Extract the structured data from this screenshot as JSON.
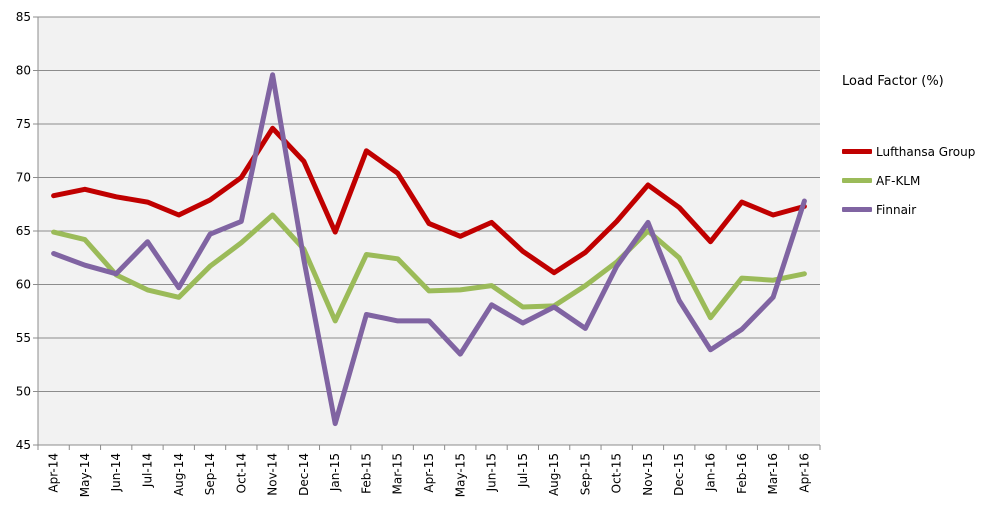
{
  "chart_data": {
    "type": "line",
    "title": "",
    "xlabel": "",
    "ylabel": "",
    "ylim": [
      45,
      85
    ],
    "y_ticks": [
      45,
      50,
      55,
      60,
      65,
      70,
      75,
      80,
      85
    ],
    "grid": true,
    "legend_title": "Load Factor (%)",
    "legend_position": "right",
    "categories": [
      "Apr-14",
      "May-14",
      "Jun-14",
      "Jul-14",
      "Aug-14",
      "Sep-14",
      "Oct-14",
      "Nov-14",
      "Dec-14",
      "Jan-15",
      "Feb-15",
      "Mar-15",
      "Apr-15",
      "May-15",
      "Jun-15",
      "Jul-15",
      "Aug-15",
      "Sep-15",
      "Oct-15",
      "Nov-15",
      "Dec-15",
      "Jan-16",
      "Feb-16",
      "Mar-16",
      "Apr-16"
    ],
    "series": [
      {
        "name": "Lufthansa Group",
        "color": "#c00000",
        "values": [
          68.3,
          68.9,
          68.2,
          67.7,
          66.5,
          67.9,
          70.0,
          74.6,
          71.5,
          64.9,
          72.5,
          70.4,
          65.7,
          64.5,
          65.8,
          63.1,
          61.1,
          63.0,
          65.9,
          69.3,
          67.2,
          64.0,
          67.7,
          66.5,
          67.3
        ]
      },
      {
        "name": "AF-KLM",
        "color": "#9bbb59",
        "values": [
          64.9,
          64.2,
          60.9,
          59.5,
          58.8,
          61.7,
          63.9,
          66.5,
          63.3,
          56.6,
          62.8,
          62.4,
          59.4,
          59.5,
          59.9,
          57.9,
          58.0,
          59.9,
          62.1,
          65.0,
          62.5,
          56.9,
          60.6,
          60.4,
          61.0
        ]
      },
      {
        "name": "Finnair",
        "color": "#8064a2",
        "values": [
          62.9,
          61.8,
          61.0,
          64.0,
          59.7,
          64.7,
          65.9,
          79.6,
          62.3,
          47.0,
          57.2,
          56.6,
          56.6,
          53.5,
          58.1,
          56.4,
          57.9,
          55.9,
          61.7,
          65.8,
          58.5,
          53.9,
          55.8,
          58.8,
          67.8
        ]
      }
    ]
  }
}
